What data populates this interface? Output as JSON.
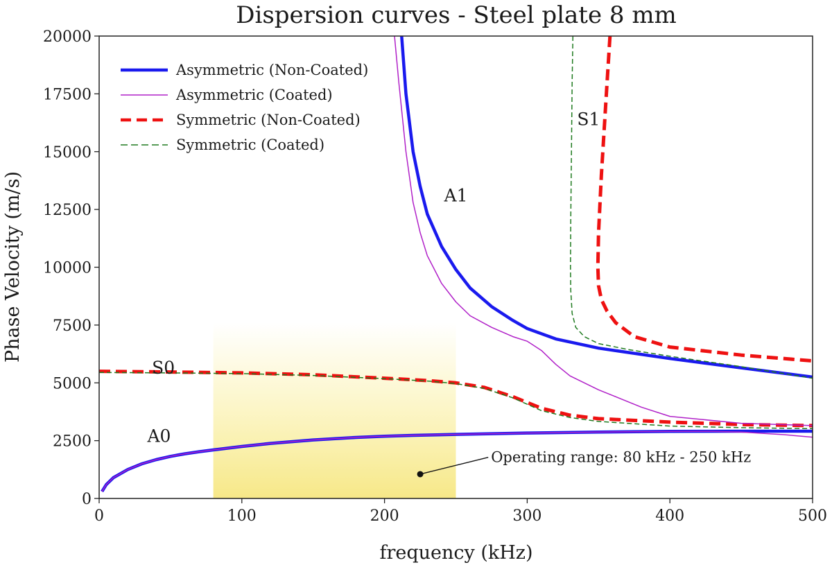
{
  "chart_data": {
    "type": "line",
    "title": "Dispersion curves - Steel plate 8 mm",
    "xlabel": "frequency (kHz)",
    "ylabel": "Phase Velocity (m/s)",
    "xlim": [
      0,
      500
    ],
    "ylim": [
      0,
      20000
    ],
    "xticks": [
      0,
      100,
      200,
      300,
      400,
      500
    ],
    "yticks": [
      0,
      2500,
      5000,
      7500,
      10000,
      12500,
      15000,
      17500,
      20000
    ],
    "legend_position": "top-left",
    "highlight": {
      "x_range": [
        80,
        250
      ],
      "color": "#f5e36a",
      "label": "Operating range: 80 kHz - 250 kHz",
      "marker": [
        225,
        1050
      ],
      "text_anchor": [
        262,
        1600
      ]
    },
    "series": [
      {
        "name": "Asymmetric (Non-Coated)",
        "mode": "A0",
        "color": "#1a1aee",
        "dash": "solid",
        "width": 4.5,
        "x": [
          2,
          5,
          10,
          20,
          30,
          40,
          50,
          60,
          70,
          80,
          100,
          120,
          150,
          180,
          200,
          220,
          250,
          300,
          350,
          400,
          450,
          500
        ],
        "y": [
          300,
          600,
          900,
          1250,
          1500,
          1680,
          1820,
          1930,
          2020,
          2100,
          2250,
          2380,
          2530,
          2640,
          2690,
          2730,
          2770,
          2830,
          2870,
          2900,
          2910,
          2910
        ]
      },
      {
        "name": "Asymmetric (Coated)",
        "mode": "A0",
        "color": "#b020c8",
        "dash": "solid",
        "width": 1.5,
        "x": [
          2,
          5,
          10,
          20,
          30,
          40,
          50,
          60,
          70,
          80,
          100,
          120,
          150,
          180,
          200,
          220,
          250,
          300,
          350,
          400,
          430,
          450,
          480,
          500
        ],
        "y": [
          300,
          600,
          900,
          1250,
          1500,
          1680,
          1820,
          1930,
          2020,
          2100,
          2250,
          2380,
          2530,
          2640,
          2690,
          2730,
          2770,
          2830,
          2870,
          2900,
          2900,
          2870,
          2760,
          2650
        ]
      },
      {
        "name": "Symmetric (Non-Coated)",
        "mode": "S0",
        "color": "#ee1111",
        "dash": "dashed",
        "width": 5,
        "x": [
          0,
          50,
          100,
          150,
          200,
          230,
          250,
          270,
          290,
          310,
          330,
          350,
          400,
          450,
          500
        ],
        "y": [
          5500,
          5470,
          5430,
          5350,
          5200,
          5100,
          5000,
          4800,
          4400,
          3900,
          3600,
          3450,
          3300,
          3200,
          3150
        ]
      },
      {
        "name": "Symmetric (Coated)",
        "mode": "S0",
        "color": "#1e7a1e",
        "dash": "dashed",
        "width": 1.5,
        "x": [
          0,
          50,
          100,
          150,
          200,
          230,
          250,
          270,
          290,
          310,
          330,
          350,
          400,
          450,
          500
        ],
        "y": [
          5450,
          5430,
          5400,
          5320,
          5180,
          5080,
          4970,
          4760,
          4350,
          3800,
          3500,
          3330,
          3130,
          3060,
          3020
        ]
      },
      {
        "name": "Asymmetric (Non-Coated)",
        "mode": "A1",
        "color": "#1a1aee",
        "dash": "solid",
        "width": 4.5,
        "x": [
          212,
          215,
          220,
          225,
          230,
          240,
          250,
          260,
          275,
          290,
          300,
          320,
          350,
          400,
          450,
          500
        ],
        "y": [
          20000,
          17500,
          15000,
          13500,
          12300,
          10900,
          9900,
          9100,
          8300,
          7700,
          7350,
          6900,
          6500,
          6050,
          5650,
          5250
        ]
      },
      {
        "name": "Asymmetric (Coated)",
        "mode": "A1",
        "color": "#b020c8",
        "dash": "solid",
        "width": 1.5,
        "x": [
          207,
          210,
          215,
          220,
          225,
          230,
          240,
          250,
          260,
          275,
          290,
          300,
          310,
          320,
          330,
          350,
          380,
          400,
          450,
          500
        ],
        "y": [
          20000,
          18000,
          15000,
          12800,
          11500,
          10500,
          9300,
          8500,
          7900,
          7400,
          7000,
          6800,
          6400,
          5800,
          5300,
          4700,
          3950,
          3550,
          3250,
          3150
        ]
      },
      {
        "name": "Symmetric (Non-Coated)",
        "mode": "S1",
        "color": "#ee1111",
        "dash": "dashed",
        "width": 5,
        "x": [
          358,
          356,
          354,
          352,
          350,
          349.5,
          350,
          352,
          356,
          362,
          375,
          400,
          450,
          500
        ],
        "y": [
          20000,
          18000,
          16000,
          14000,
          11500,
          10000,
          9200,
          8600,
          8100,
          7600,
          7000,
          6550,
          6200,
          5950
        ]
      },
      {
        "name": "Symmetric (Coated)",
        "mode": "S1",
        "color": "#1e7a1e",
        "dash": "dashed",
        "width": 1.5,
        "x": [
          332,
          331.5,
          331,
          330.5,
          330.3,
          330.5,
          331.5,
          334,
          340,
          350,
          370,
          400,
          450,
          500
        ],
        "y": [
          20000,
          18000,
          15000,
          12000,
          10000,
          9000,
          8000,
          7400,
          7000,
          6700,
          6450,
          6150,
          5700,
          5200
        ]
      }
    ],
    "legend": [
      {
        "label": "Asymmetric (Non-Coated)",
        "color": "#1a1aee",
        "dash": "solid",
        "width": 4.5
      },
      {
        "label": "Asymmetric (Coated)",
        "color": "#b020c8",
        "dash": "solid",
        "width": 1.5
      },
      {
        "label": "Symmetric (Non-Coated)",
        "color": "#ee1111",
        "dash": "dashed",
        "width": 4.5
      },
      {
        "label": "Symmetric (Coated)",
        "color": "#1e7a1e",
        "dash": "dashed",
        "width": 1.5
      }
    ],
    "annotations": [
      {
        "text": "A0",
        "x": 42,
        "y": 2450
      },
      {
        "text": "S0",
        "x": 45,
        "y": 5400
      },
      {
        "text": "A1",
        "x": 250,
        "y": 12850
      },
      {
        "text": "S1",
        "x": 343,
        "y": 16150
      }
    ]
  }
}
